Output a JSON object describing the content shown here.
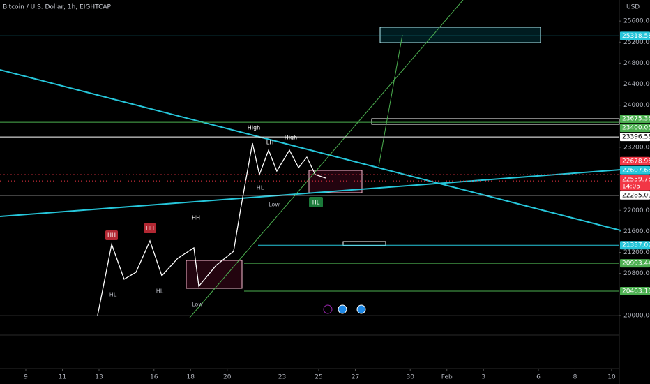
{
  "chart_data": {
    "type": "line",
    "title": "Bitcoin / U.S. Dollar, 1h, EIGHTCAP",
    "currency": "USD",
    "x": [
      12.92,
      13.69,
      14.37,
      15.02,
      15.78,
      16.43,
      17.3,
      18.18,
      18.45,
      19.4,
      20.35,
      20.73,
      21.38,
      21.76,
      22.26,
      22.71,
      23.4,
      23.9,
      24.35,
      24.81,
      25.38
    ],
    "series": [
      {
        "color": "#ffffff",
        "values": [
          20000,
          21354,
          20690,
          20823,
          21420,
          20756,
          21088,
          21287,
          20557,
          20955,
          21221,
          22017,
          23278,
          22681,
          23145,
          22747,
          23145,
          22813,
          23012,
          22681,
          22614
        ]
      }
    ],
    "xlim": [
      7.59,
      41.42
    ],
    "xticks": [
      9,
      11,
      13,
      16,
      18,
      20,
      23,
      25,
      27,
      30,
      {
        "value": 32,
        "label": "Feb"
      },
      {
        "value": 34,
        "label": "3"
      },
      {
        "value": 37,
        "label": "6"
      },
      {
        "value": 39,
        "label": "8"
      },
      {
        "value": 41,
        "label": "10"
      }
    ],
    "ylim": [
      18990,
      26000
    ],
    "yticks": [
      {
        "value": 25600,
        "label": "25600.00"
      },
      {
        "value": 25200,
        "label": "25200.00"
      },
      {
        "value": 24800,
        "label": "24800.00"
      },
      {
        "value": 24400,
        "label": "24400.00"
      },
      {
        "value": 24000,
        "label": "24000.00"
      },
      {
        "value": 23200,
        "label": "23200.00"
      },
      {
        "value": 22000,
        "label": "22000.00"
      },
      {
        "value": 21600,
        "label": "21600.00"
      },
      {
        "value": 21200,
        "label": "21200.00"
      },
      {
        "value": 20800,
        "label": "20800.00"
      },
      {
        "value": 20000,
        "label": "20000.00"
      }
    ],
    "levels": [
      {
        "value": 25318.58,
        "color": "#26c6da"
      },
      {
        "value": 23675.36,
        "color": "#4caf50"
      },
      {
        "value": 23400.05,
        "color": "#4caf50"
      },
      {
        "value": 23396.58,
        "color": "#ffffff"
      },
      {
        "value": 22678.96,
        "color": "#f23645"
      },
      {
        "value": 22607.68,
        "color": "#26c6da"
      },
      {
        "value": 22559.76,
        "color": "#f23645",
        "countdown": "14:05"
      },
      {
        "value": 22285.09,
        "color": "#ffffff"
      },
      {
        "value": 21337.07,
        "color": "#26c6da"
      },
      {
        "value": 20993.44,
        "color": "#4caf50"
      },
      {
        "value": 20463.16,
        "color": "#4caf50"
      }
    ],
    "annotations": [
      "HH",
      "HH",
      "HH",
      "High",
      "LH",
      "High",
      "HL",
      "HL",
      "Low",
      "HL",
      "Low",
      "HL"
    ]
  }
}
